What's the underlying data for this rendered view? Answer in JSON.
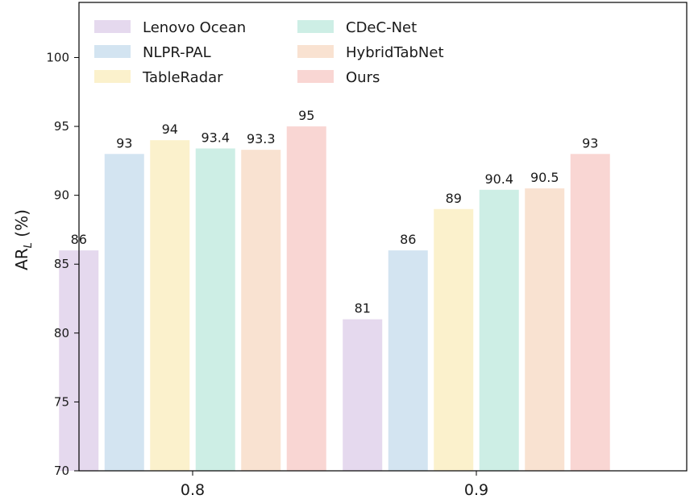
{
  "chart_data": {
    "type": "bar",
    "categories": [
      "0.8",
      "0.9"
    ],
    "series": [
      {
        "name": "Lenovo Ocean",
        "values": [
          86,
          81
        ],
        "color": "#e5d9ee"
      },
      {
        "name": "NLPR-PAL",
        "values": [
          93,
          86
        ],
        "color": "#d3e4f1"
      },
      {
        "name": "TableRadar",
        "values": [
          94,
          89
        ],
        "color": "#fbf1cc"
      },
      {
        "name": "CDeC-Net",
        "values": [
          93.4,
          90.4
        ],
        "color": "#cdeee5"
      },
      {
        "name": "HybridTabNet",
        "values": [
          93.3,
          90.5
        ],
        "color": "#f9e2d1"
      },
      {
        "name": "Ours",
        "values": [
          95,
          93
        ],
        "color": "#f9d6d3"
      }
    ],
    "data_labels": [
      [
        "86",
        "93",
        "94",
        "93.4",
        "93.3",
        "95"
      ],
      [
        "81",
        "86",
        "89",
        "90.4",
        "90.5",
        "93"
      ]
    ],
    "ylabel": {
      "main": "AR",
      "sub": "L",
      "suffix": " (%)"
    },
    "ylim": [
      70,
      104
    ],
    "yticks": [
      "70",
      "75",
      "80",
      "85",
      "90",
      "95",
      "100"
    ],
    "legend_position": "top-left",
    "grid": false
  }
}
